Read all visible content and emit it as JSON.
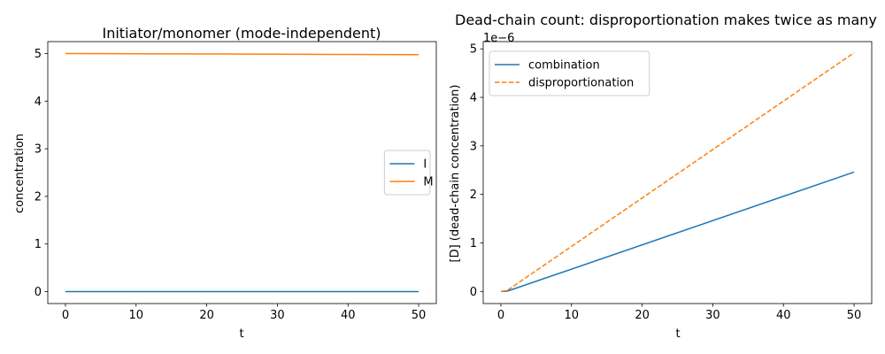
{
  "chart_data": [
    {
      "type": "line",
      "title": "Initiator/monomer (mode-independent)",
      "xlabel": "t",
      "ylabel": "concentration",
      "xlim": [
        -2.5,
        52.5
      ],
      "ylim": [
        -0.25,
        5.25
      ],
      "xticks": [
        "0",
        "10",
        "20",
        "30",
        "40",
        "50"
      ],
      "yticks": [
        "0",
        "1",
        "2",
        "3",
        "4",
        "5"
      ],
      "grid": false,
      "legend_position": "center-right",
      "series": [
        {
          "name": "I",
          "color": "#1f77b4",
          "dash": "solid",
          "x": [
            0,
            50
          ],
          "y": [
            0.001,
            0.0
          ]
        },
        {
          "name": "M",
          "color": "#ff7f0e",
          "dash": "solid",
          "x": [
            0,
            10,
            20,
            30,
            40,
            50
          ],
          "y": [
            5.0,
            4.995,
            4.99,
            4.985,
            4.98,
            4.975
          ]
        }
      ]
    },
    {
      "type": "line",
      "title": "Dead-chain count: disproportionation makes twice as many",
      "xlabel": "t",
      "ylabel": "[D] (dead-chain concentration)",
      "y_exponent_label": "1e−6",
      "xlim": [
        -2.5,
        52.5
      ],
      "ylim": [
        -0.25,
        5.15
      ],
      "xticks": [
        "0",
        "10",
        "20",
        "30",
        "40",
        "50"
      ],
      "yticks": [
        "0",
        "1",
        "2",
        "3",
        "4",
        "5"
      ],
      "grid": false,
      "legend_position": "upper-left",
      "series": [
        {
          "name": "combination",
          "color": "#1f77b4",
          "dash": "solid",
          "x": [
            0,
            0.5,
            1,
            50
          ],
          "y": [
            0.0,
            0.0,
            0.01,
            2.46
          ]
        },
        {
          "name": "disproportionation",
          "color": "#ff7f0e",
          "dash": "dashed",
          "x": [
            0,
            0.5,
            1,
            50
          ],
          "y": [
            0.0,
            0.01,
            0.03,
            4.92
          ]
        }
      ]
    }
  ]
}
